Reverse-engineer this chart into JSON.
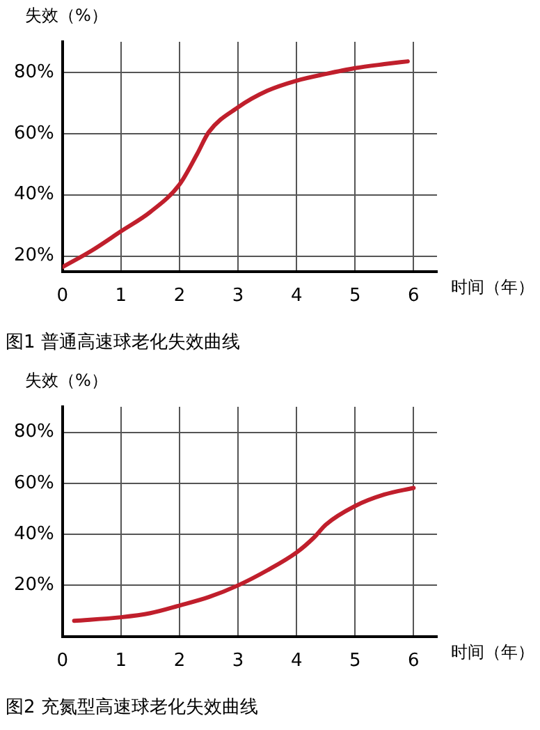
{
  "chart_data": [
    {
      "type": "line",
      "title": "图1 普通高速球老化失效曲线",
      "xlabel": "时间（年）",
      "ylabel": "失效（%）",
      "xlim": [
        0,
        6.4
      ],
      "ylim": [
        15,
        90
      ],
      "xticks": [
        0,
        1,
        2,
        3,
        4,
        5,
        6
      ],
      "yticks": [
        {
          "value": 20,
          "label": "20%"
        },
        {
          "value": 40,
          "label": "40%"
        },
        {
          "value": 60,
          "label": "60%"
        },
        {
          "value": 80,
          "label": "80%"
        }
      ],
      "grid": true,
      "legend": false,
      "marker": "none",
      "line_style": "solid",
      "series": [
        {
          "color": "#c01f2c",
          "x": [
            0,
            0.5,
            1,
            1.5,
            2,
            2.3,
            2.5,
            3,
            3.5,
            4,
            4.5,
            5,
            5.5,
            5.9
          ],
          "values": [
            16.4,
            21.8,
            28.1,
            34.4,
            43.4,
            53.3,
            60.5,
            68.6,
            74,
            77.3,
            79.5,
            81.4,
            82.7,
            83.6
          ]
        }
      ]
    },
    {
      "type": "line",
      "title": "图2 充氮型高速球老化失效曲线",
      "xlabel": "时间（年）",
      "ylabel": "失效（%）",
      "xlim": [
        0,
        6.4
      ],
      "ylim": [
        0,
        90
      ],
      "xticks": [
        0,
        1,
        2,
        3,
        4,
        5,
        6
      ],
      "yticks": [
        {
          "value": 20,
          "label": "20%"
        },
        {
          "value": 40,
          "label": "40%"
        },
        {
          "value": 60,
          "label": "60%"
        },
        {
          "value": 80,
          "label": "80%"
        }
      ],
      "grid": true,
      "legend": false,
      "marker": "none",
      "line_style": "solid",
      "series": [
        {
          "color": "#c01f2c",
          "x": [
            0.2,
            1,
            1.5,
            2,
            2.5,
            3,
            3.5,
            4,
            4.3,
            4.5,
            5,
            5.5,
            6
          ],
          "values": [
            6.1,
            7.5,
            9.1,
            12.1,
            15.4,
            20,
            25.9,
            32.9,
            38.8,
            43.8,
            51.1,
            55.6,
            58.2
          ]
        }
      ]
    }
  ]
}
